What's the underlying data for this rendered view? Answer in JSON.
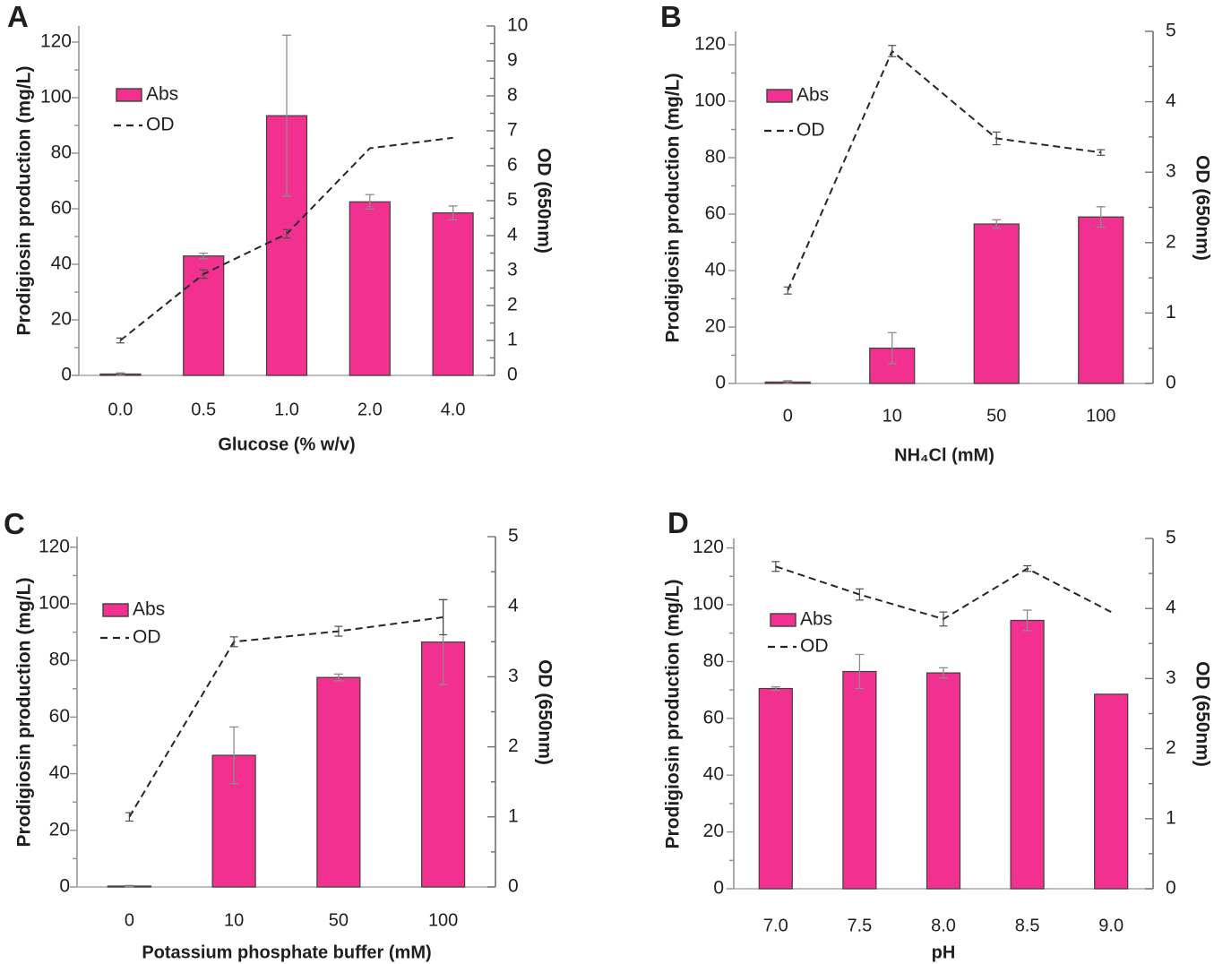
{
  "style": {
    "bar_fill": "#F13090",
    "bar_stroke": "#3F3F3F",
    "line_color": "#262626",
    "bar_error_color": "#8C8C8C",
    "line_error_color": "#4D4D4D",
    "left_axis_color": "#8F8F8F",
    "baseline_color": "#A8A8A8",
    "right_axis_color": "#707070",
    "text_color": "#1F1F1F",
    "background": "#FFFFFF"
  },
  "chart_data": [
    {
      "panel": "A",
      "type": "bar",
      "dual_axis": true,
      "categories": [
        "0.0",
        "0.5",
        "1.0",
        "2.0",
        "4.0"
      ],
      "series": [
        {
          "name": "Abs",
          "type": "bar",
          "axis": "left",
          "values": [
            0.5,
            43,
            93.5,
            62.5,
            58.5
          ],
          "errors": [
            0.4,
            1.0,
            29,
            2.6,
            2.5
          ]
        },
        {
          "name": "OD",
          "type": "line",
          "axis": "right",
          "values": [
            1.0,
            2.9,
            4.05,
            6.5,
            6.8
          ],
          "errors": [
            0.07,
            0.12,
            0.12,
            0,
            0
          ]
        }
      ],
      "xlabel": "Glucose (% w/v)",
      "ylabel_left": "Prodigiosin production (mg/L)",
      "ylabel_right": "OD (650nm)",
      "left_axis": {
        "min": 0,
        "max": 120,
        "tick_step": 20,
        "minor_step": 10
      },
      "right_axis": {
        "min": 0,
        "max": 10,
        "tick_step": 1,
        "minor_step": 0.5
      },
      "legend": {
        "entries": [
          "Abs",
          "OD"
        ],
        "position": "upper-left-inside"
      },
      "grid": false
    },
    {
      "panel": "B",
      "type": "bar",
      "dual_axis": true,
      "categories": [
        "0",
        "10",
        "50",
        "100"
      ],
      "series": [
        {
          "name": "Abs",
          "type": "bar",
          "axis": "left",
          "values": [
            0.5,
            12.5,
            56.5,
            59
          ],
          "errors": [
            0.5,
            5.5,
            1.5,
            3.6
          ]
        },
        {
          "name": "OD",
          "type": "line",
          "axis": "right",
          "values": [
            1.32,
            4.72,
            3.48,
            3.28
          ],
          "errors": [
            0.05,
            0.08,
            0.09,
            0.04
          ]
        }
      ],
      "xlabel": "NH₄Cl (mM)",
      "ylabel_left": "Prodigiosin production (mg/L)",
      "ylabel_right": "OD (650nm)",
      "left_axis": {
        "min": 0,
        "max": 120,
        "tick_step": 20,
        "minor_step": 10
      },
      "right_axis": {
        "min": 0,
        "max": 5,
        "tick_step": 1,
        "minor_step": 0.5
      },
      "legend": {
        "entries": [
          "Abs",
          "OD"
        ],
        "position": "upper-left-inside"
      },
      "grid": false
    },
    {
      "panel": "C",
      "type": "bar",
      "dual_axis": true,
      "categories": [
        "0",
        "10",
        "50",
        "100"
      ],
      "series": [
        {
          "name": "Abs",
          "type": "bar",
          "axis": "left",
          "values": [
            0.3,
            46.5,
            74,
            86.5
          ],
          "errors": [
            0.25,
            10,
            1.2,
            15
          ]
        },
        {
          "name": "OD",
          "type": "line",
          "axis": "right",
          "values": [
            1.0,
            3.5,
            3.65,
            3.85
          ],
          "errors": [
            0.06,
            0.07,
            0.07,
            0.25
          ]
        }
      ],
      "xlabel": "Potassium phosphate buffer (mM)",
      "ylabel_left": "Prodigiosin production (mg/L)",
      "ylabel_right": "OD (650nm)",
      "left_axis": {
        "min": 0,
        "max": 120,
        "tick_step": 20,
        "minor_step": 10
      },
      "right_axis": {
        "min": 0,
        "max": 5,
        "tick_step": 1,
        "minor_step": 0.5
      },
      "legend": {
        "entries": [
          "Abs",
          "OD"
        ],
        "position": "upper-left-inside"
      },
      "grid": false
    },
    {
      "panel": "D",
      "type": "bar",
      "dual_axis": true,
      "categories": [
        "7.0",
        "7.5",
        "8.0",
        "8.5",
        "9.0"
      ],
      "series": [
        {
          "name": "Abs",
          "type": "bar",
          "axis": "left",
          "values": [
            70.5,
            76.5,
            76,
            94.5,
            68.5
          ],
          "errors": [
            0.6,
            6,
            1.8,
            3.6,
            0
          ]
        },
        {
          "name": "OD",
          "type": "line",
          "axis": "right",
          "values": [
            4.6,
            4.2,
            3.85,
            4.57,
            3.95
          ],
          "errors": [
            0.07,
            0.08,
            0.1,
            0.04,
            0
          ]
        }
      ],
      "xlabel": "pH",
      "ylabel_left": "Prodigiosin production (mg/L)",
      "ylabel_right": "OD (650nm)",
      "left_axis": {
        "min": 0,
        "max": 120,
        "tick_step": 20,
        "minor_step": 10
      },
      "right_axis": {
        "min": 0,
        "max": 5,
        "tick_step": 1,
        "minor_step": 0.5
      },
      "legend": {
        "entries": [
          "Abs",
          "OD"
        ],
        "position": "upper-left-inside"
      },
      "grid": false
    }
  ]
}
